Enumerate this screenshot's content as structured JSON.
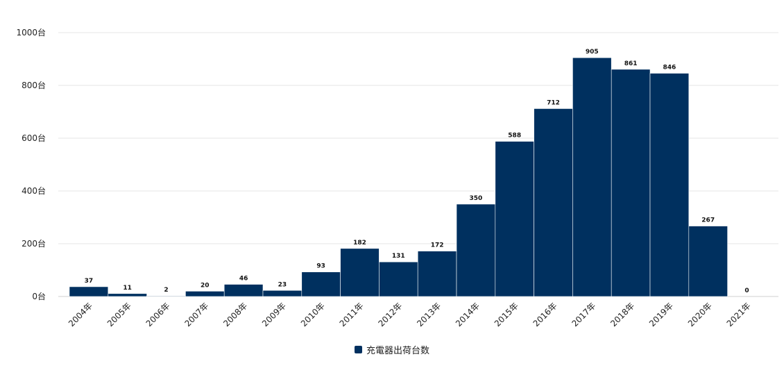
{
  "chart_data": {
    "type": "bar",
    "title": "",
    "xlabel": "",
    "ylabel": "",
    "categories": [
      "2004年",
      "2005年",
      "2006年",
      "2007年",
      "2008年",
      "2009年",
      "2010年",
      "2011年",
      "2012年",
      "2013年",
      "2014年",
      "2015年",
      "2016年",
      "2017年",
      "2018年",
      "2019年",
      "2020年",
      "2021年"
    ],
    "series": [
      {
        "name": "充電器出荷台数",
        "values": [
          37,
          11,
          2,
          20,
          46,
          23,
          93,
          182,
          131,
          172,
          350,
          588,
          712,
          905,
          861,
          846,
          267,
          0
        ],
        "color": "#00305f"
      }
    ],
    "y_ticks": [
      0,
      200,
      400,
      600,
      800,
      1000
    ],
    "y_tick_labels": [
      "0台",
      "200台",
      "400台",
      "600台",
      "800台",
      "1000台"
    ],
    "ylim": [
      0,
      1000
    ],
    "grid": true,
    "legend_position": "bottom-center"
  }
}
